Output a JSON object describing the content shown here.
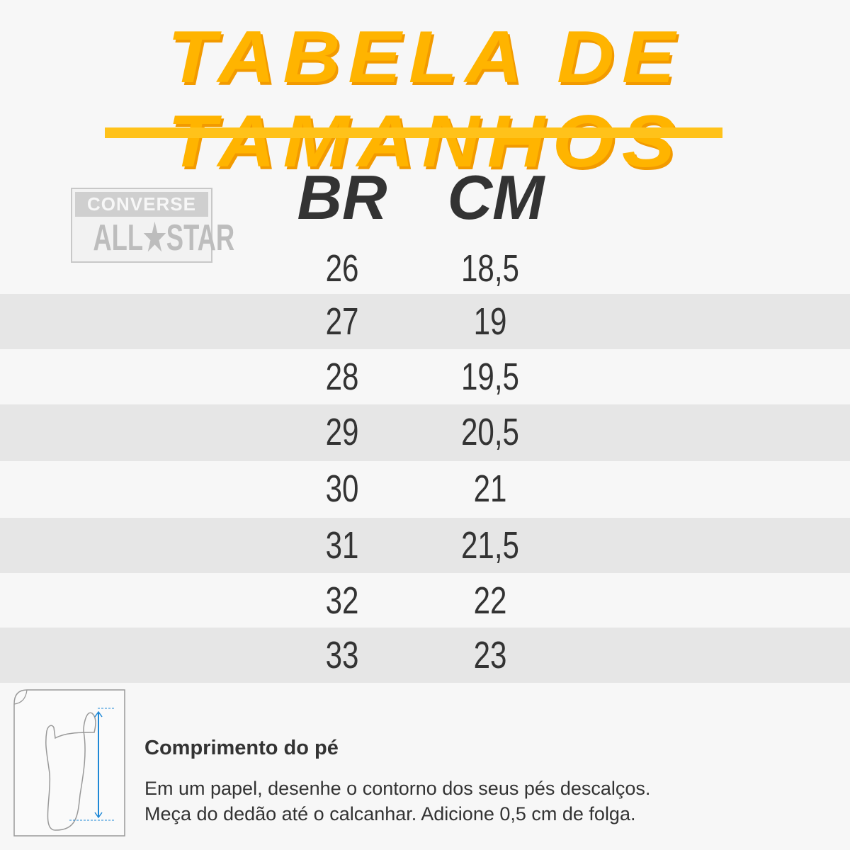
{
  "title": "TABELA DE TAMANHOS",
  "logo": {
    "line1": "CONVERSE",
    "line2": "ALL★STAR"
  },
  "headers": {
    "br": "BR",
    "cm": "CM"
  },
  "rows": [
    {
      "br": "26",
      "cm": "18,5"
    },
    {
      "br": "27",
      "cm": "19"
    },
    {
      "br": "28",
      "cm": "19,5"
    },
    {
      "br": "29",
      "cm": "20,5"
    },
    {
      "br": "30",
      "cm": "21"
    },
    {
      "br": "31",
      "cm": "21,5"
    },
    {
      "br": "32",
      "cm": "22"
    },
    {
      "br": "33",
      "cm": "23"
    }
  ],
  "note": {
    "title": "Comprimento do pé",
    "line1": "Em um papel, desenhe o contorno dos seus pés descalços.",
    "line2": "Meça do dedão até o calcanhar. Adicione 0,5 cm de folga."
  },
  "colors": {
    "accent": "#ffb400",
    "text": "#333333",
    "row_alt": "#e6e6e6",
    "measure": "#1e88d6"
  }
}
